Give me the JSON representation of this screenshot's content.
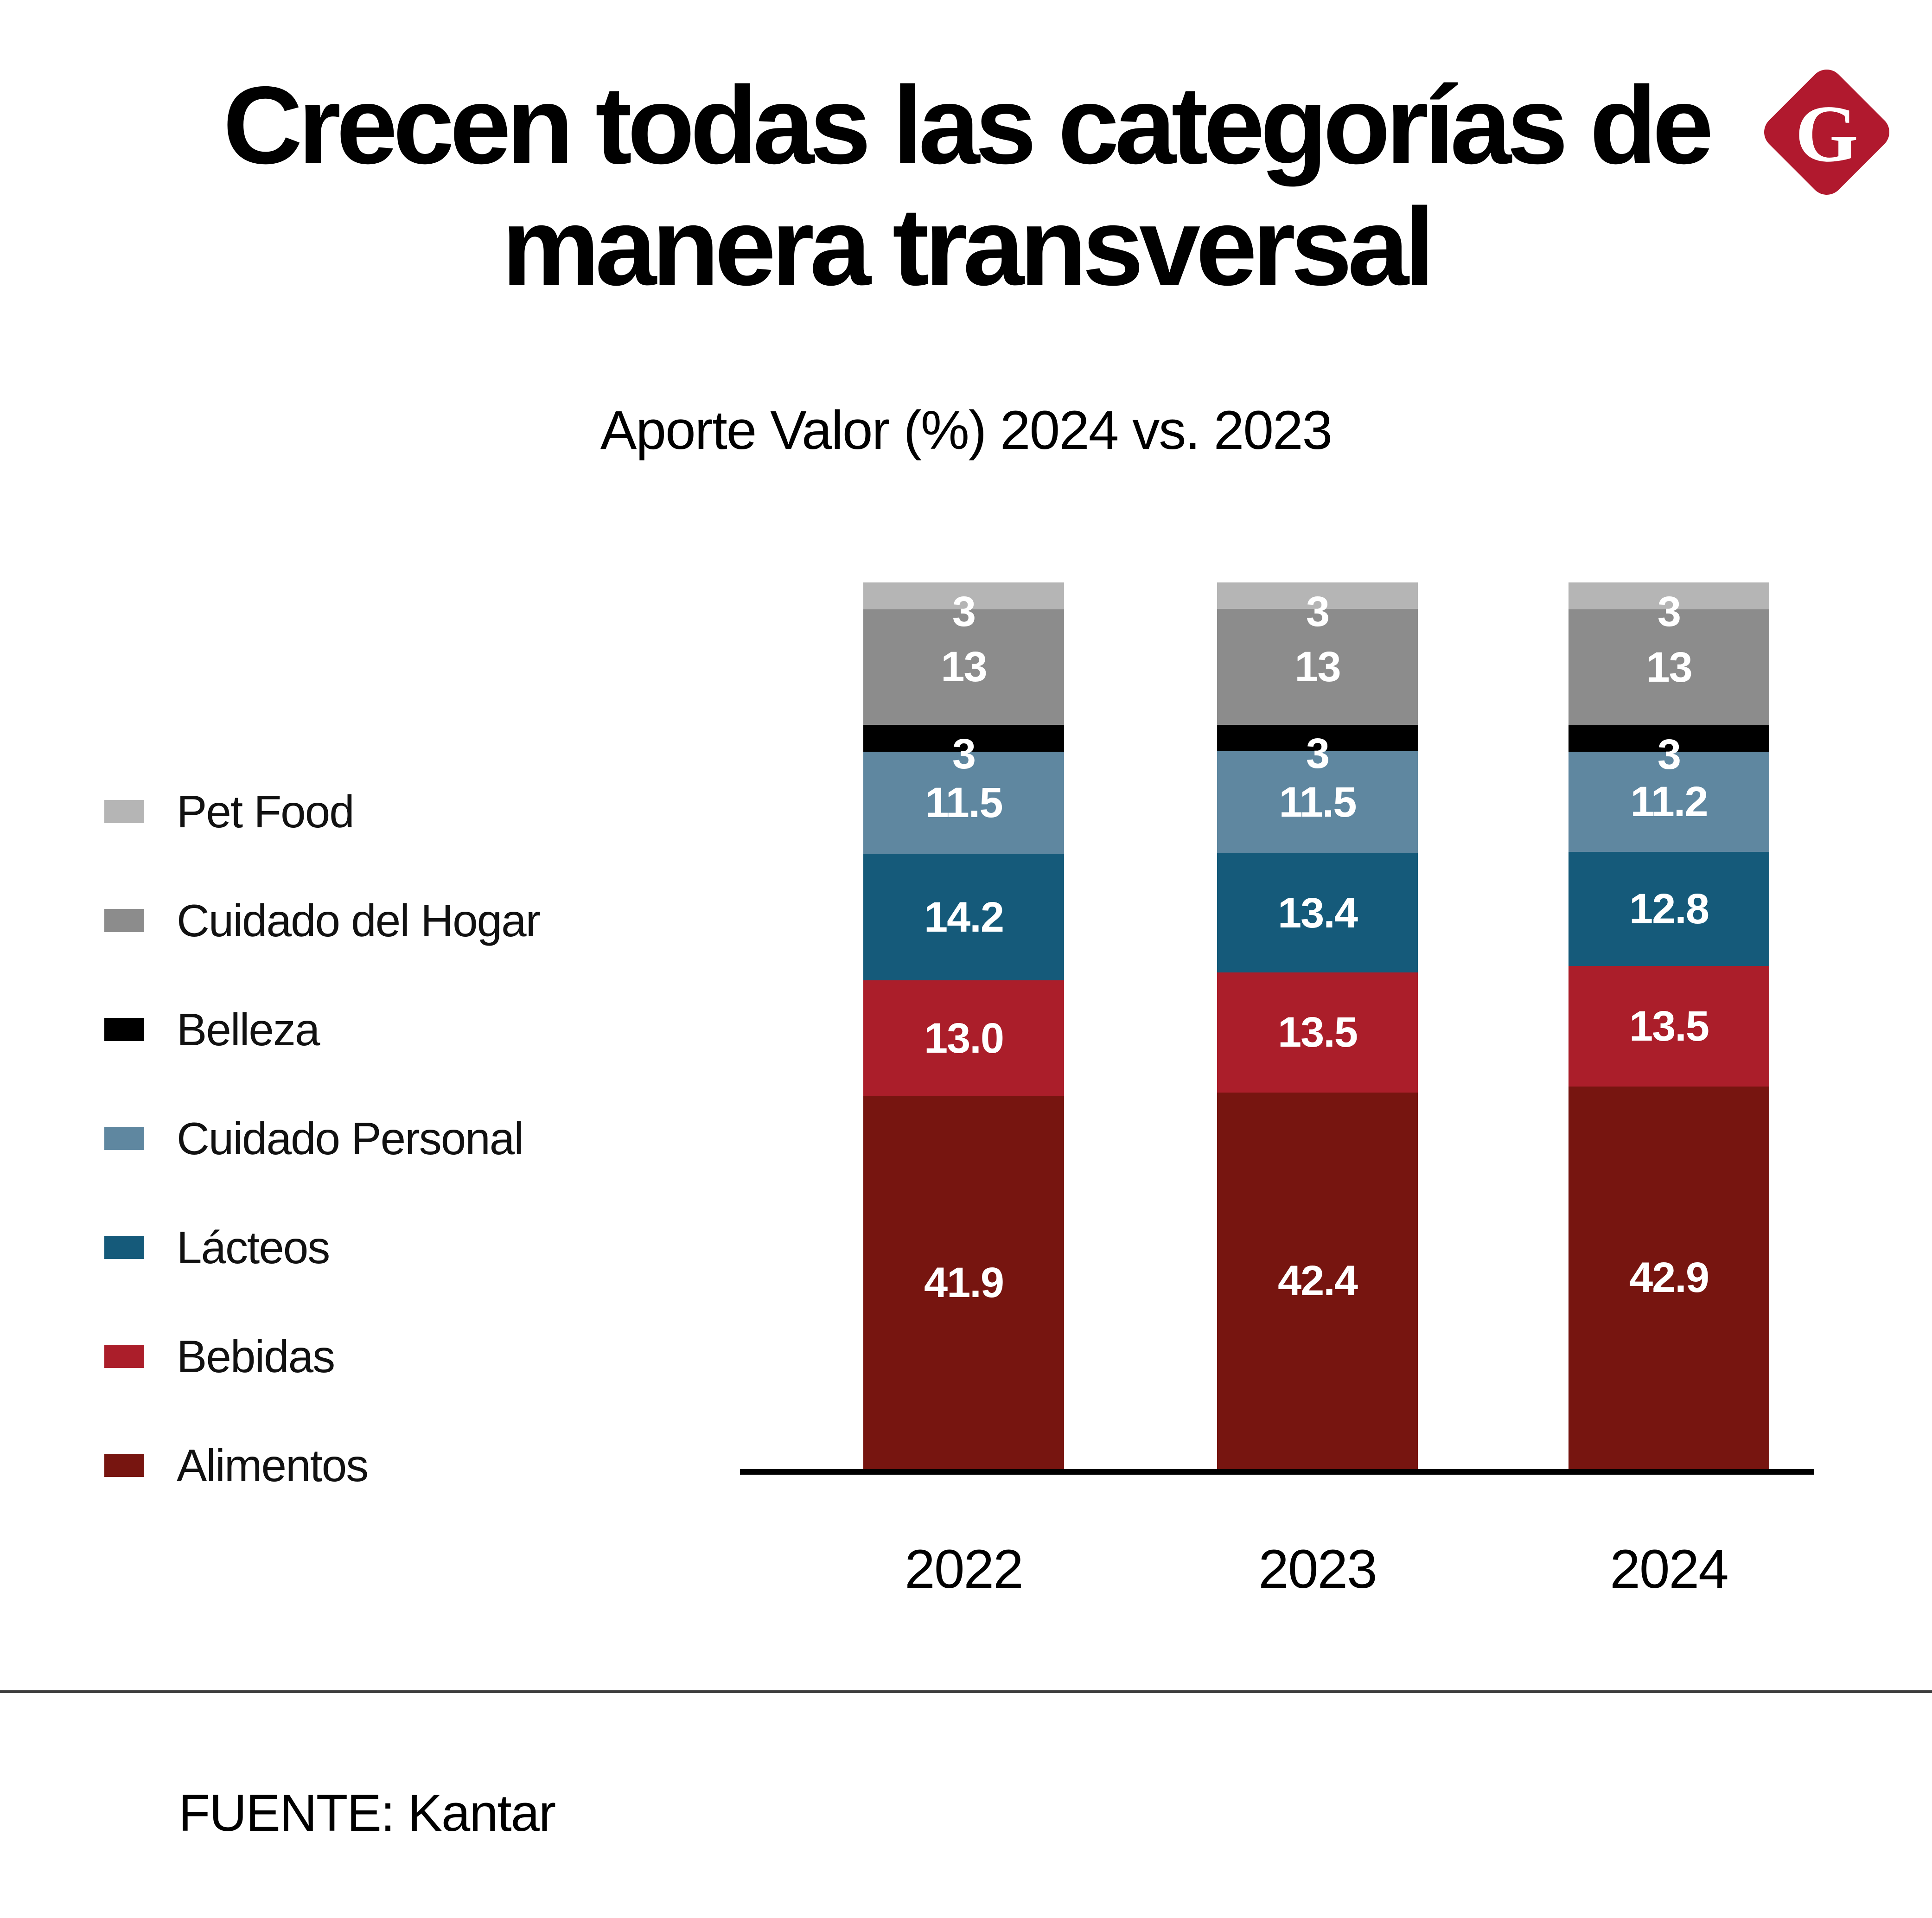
{
  "header": {
    "title_line1": "Crecen todas las categorías de",
    "title_line2": "manera transversal",
    "subtitle": "Aporte Valor (%) 2024 vs. 2023",
    "logo_letter": "G",
    "logo_color": "#b1192e"
  },
  "chart_data": {
    "type": "bar",
    "stacked": true,
    "normalized": true,
    "title": "Aporte Valor (%) 2024 vs. 2023",
    "categories": [
      "2022",
      "2023",
      "2024"
    ],
    "series": [
      {
        "name": "Pet Food",
        "color": "#b5b5b5",
        "values": [
          3,
          3,
          3
        ],
        "labels": [
          "3",
          "3",
          "3"
        ]
      },
      {
        "name": "Cuidado del Hogar",
        "color": "#8c8c8c",
        "values": [
          13,
          13,
          13
        ],
        "labels": [
          "13",
          "13",
          "13"
        ]
      },
      {
        "name": "Belleza",
        "color": "#000000",
        "values": [
          3,
          3,
          3
        ],
        "labels": [
          "3",
          "3",
          "3"
        ]
      },
      {
        "name": "Cuidado Personal",
        "color": "#5f87a0",
        "values": [
          11.5,
          11.5,
          11.2
        ],
        "labels": [
          "11.5",
          "11.5",
          "11.2"
        ]
      },
      {
        "name": "Lácteos",
        "color": "#155a7a",
        "values": [
          14.2,
          13.4,
          12.8
        ],
        "labels": [
          "14.2",
          "13.4",
          "12.8"
        ]
      },
      {
        "name": "Bebidas",
        "color": "#ab1e2a",
        "values": [
          13.0,
          13.5,
          13.5
        ],
        "labels": [
          "13.0",
          "13.5",
          "13.5"
        ]
      },
      {
        "name": "Alimentos",
        "color": "#771510",
        "values": [
          41.9,
          42.4,
          42.9
        ],
        "labels": [
          "41.9",
          "42.4",
          "42.9"
        ]
      }
    ],
    "value_unit": "%",
    "legend_position": "left",
    "x_axis_labels": [
      "2022",
      "2023",
      "2024"
    ],
    "ylim": [
      0,
      100
    ],
    "grid": false
  },
  "footer": {
    "source": "FUENTE: Kantar"
  }
}
